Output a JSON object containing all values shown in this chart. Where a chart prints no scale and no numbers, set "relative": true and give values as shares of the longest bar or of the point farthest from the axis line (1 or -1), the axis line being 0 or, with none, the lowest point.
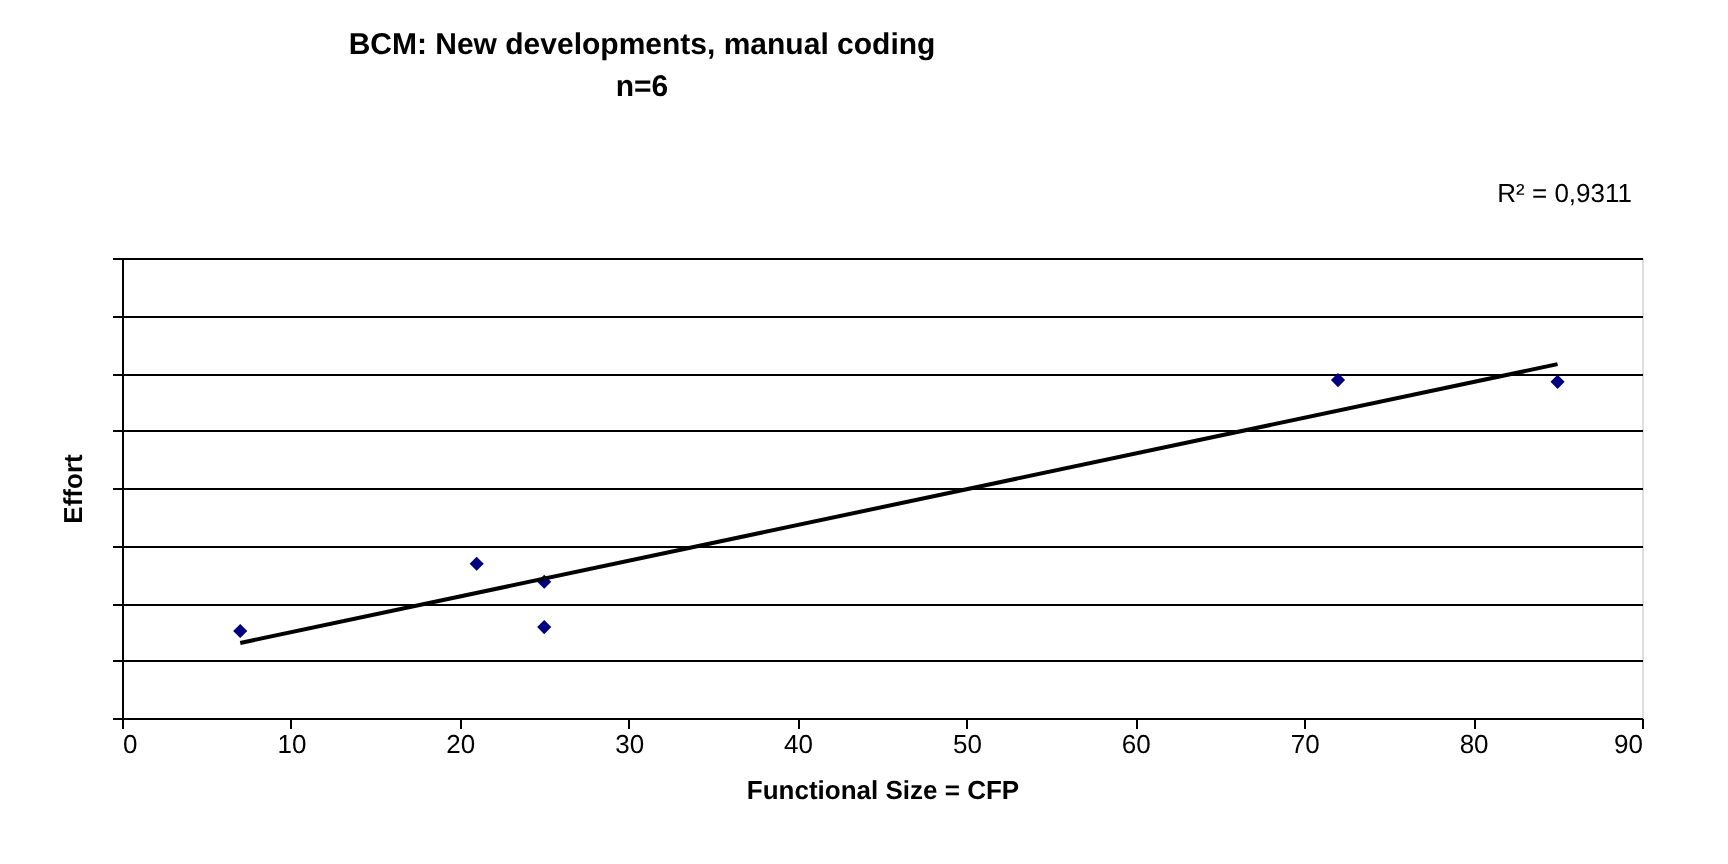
{
  "chart_data": {
    "type": "scatter",
    "title": "BCM: New developments, manual coding",
    "subtitle": "n=6",
    "xlabel": "Functional Size = CFP",
    "ylabel": "Effort",
    "relative": true,
    "xlim": [
      0,
      90
    ],
    "xticks": [
      0,
      10,
      20,
      30,
      40,
      50,
      60,
      70,
      80,
      90
    ],
    "tick_labels": "x",
    "grid": "y",
    "annotations": [
      "R² = 0,9311"
    ],
    "series": [
      {
        "color": "#000080",
        "marker": "diamond",
        "x": [
          7,
          21,
          25,
          25,
          72,
          85
        ],
        "values": [
          0.246,
          0.436,
          0.385,
          0.257,
          0.955,
          0.95
        ]
      },
      {
        "type": "line",
        "color": "#000000",
        "line_style": "solid",
        "x": [
          7,
          85
        ],
        "values": [
          0.212,
          1.0
        ]
      }
    ]
  }
}
